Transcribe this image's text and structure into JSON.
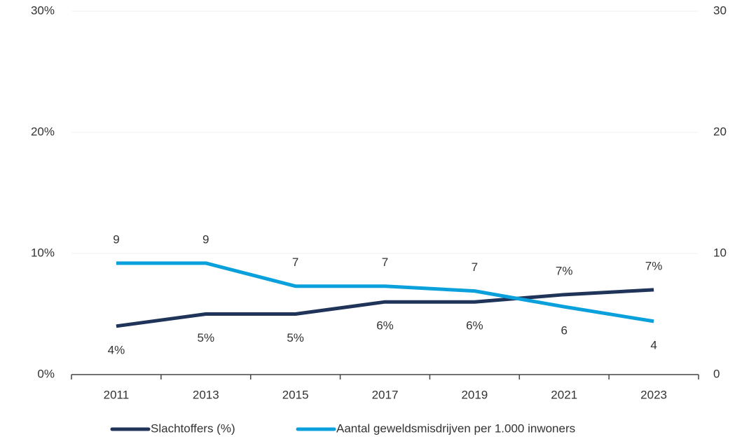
{
  "chart_data": {
    "type": "line",
    "categories": [
      "2011",
      "2013",
      "2015",
      "2017",
      "2019",
      "2021",
      "2023"
    ],
    "series": [
      {
        "name": "Slachtoffers (%)",
        "color": "#1f3458",
        "values": [
          4,
          5,
          5,
          6,
          6,
          6.6,
          7
        ],
        "value_labels": [
          "4%",
          "5%",
          "5%",
          "6%",
          "6%",
          "7%",
          "7%"
        ]
      },
      {
        "name": "Aantal geweldsmisdrijven per 1.000 inwoners",
        "color": "#0aa0dc",
        "axis": "y2",
        "values": [
          9.2,
          9.2,
          7.3,
          7.3,
          6.9,
          5.6,
          4.4
        ],
        "value_labels": [
          "9",
          "9",
          "7",
          "7",
          "7",
          "6",
          "4"
        ]
      }
    ],
    "ylim": [
      0,
      30
    ],
    "yticks": [
      {
        "value": 0,
        "label": "0%"
      },
      {
        "value": 10,
        "label": "10%"
      },
      {
        "value": 20,
        "label": "20%"
      },
      {
        "value": 30,
        "label": "30%"
      }
    ],
    "y2lim": [
      0,
      30
    ],
    "y2ticks": [
      0,
      10,
      20,
      30
    ],
    "grid": true,
    "legend": "bottom"
  }
}
